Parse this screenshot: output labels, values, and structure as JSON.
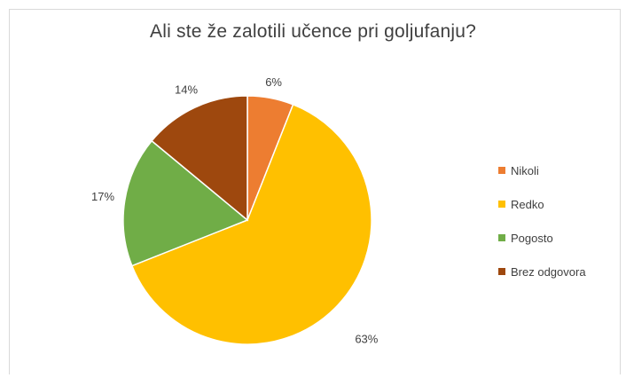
{
  "chart_data": {
    "type": "pie",
    "title": "Ali ste že zalotili učence pri goljufanju?",
    "categories": [
      "Nikoli",
      "Redko",
      "Pogosto",
      "Brez odgovora"
    ],
    "values": [
      6,
      63,
      17,
      14
    ],
    "labels": [
      "6%",
      "63%",
      "17%",
      "14%"
    ],
    "colors": [
      "#ED7D31",
      "#FFC000",
      "#70AD47",
      "#9E480E"
    ],
    "legend_position": "right"
  }
}
